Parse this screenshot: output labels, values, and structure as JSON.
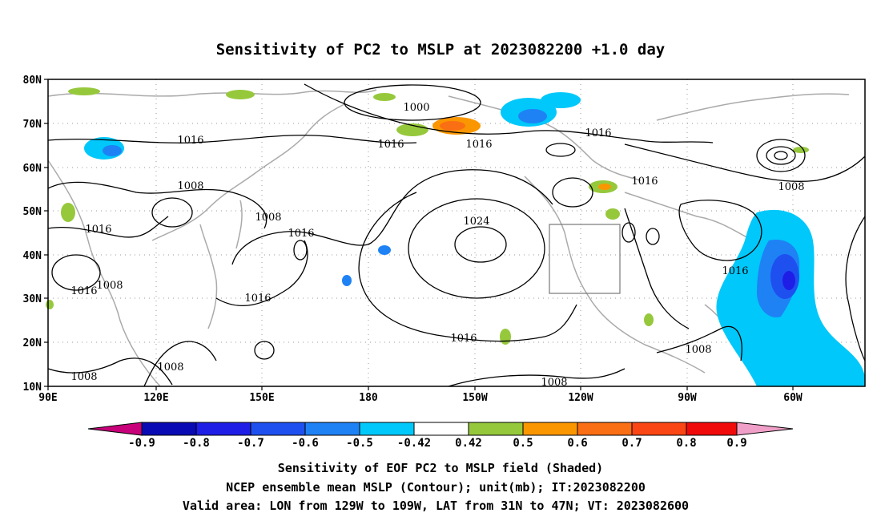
{
  "title": "Sensitivity of PC2 to MSLP at 2023082200 +1.0 day",
  "map": {
    "lon_ticks": [
      "90E",
      "120E",
      "150E",
      "180",
      "150W",
      "120W",
      "90W",
      "60W"
    ],
    "lat_ticks": [
      "80N",
      "70N",
      "60N",
      "50N",
      "40N",
      "30N",
      "20N",
      "10N"
    ],
    "contour_labels": [
      "1000",
      "1016",
      "1016",
      "1016",
      "1016",
      "1008",
      "1008",
      "1016",
      "1016",
      "1016",
      "1024",
      "1016",
      "1008",
      "1016",
      "1016",
      "1016",
      "1008",
      "1008",
      "1008",
      "1008",
      "1008"
    ],
    "validation_box": "LON from 129W to 109W, LAT from 31N to 47N"
  },
  "colorbar": {
    "tick_labels": [
      "-0.9",
      "-0.8",
      "-0.7",
      "-0.6",
      "-0.5",
      "-0.42",
      "0.42",
      "0.5",
      "0.6",
      "0.7",
      "0.8",
      "0.9"
    ],
    "colors": [
      "#c8007a",
      "#0a0ab4",
      "#1e1ee6",
      "#1e50f0",
      "#1e82f5",
      "#00c8fa",
      "#ffffff",
      "#96c83c",
      "#fa9600",
      "#fa6e14",
      "#fa4614",
      "#f00a0a",
      "#f0a0c8"
    ]
  },
  "caption": {
    "line1": "Sensitivity of EOF PC2 to MSLP field (Shaded)",
    "line2": "NCEP ensemble mean MSLP (Contour); unit(mb); IT:2023082200",
    "line3": "Valid area: LON from 129W to 109W, LAT from 31N to 47N; VT: 2023082600"
  }
}
